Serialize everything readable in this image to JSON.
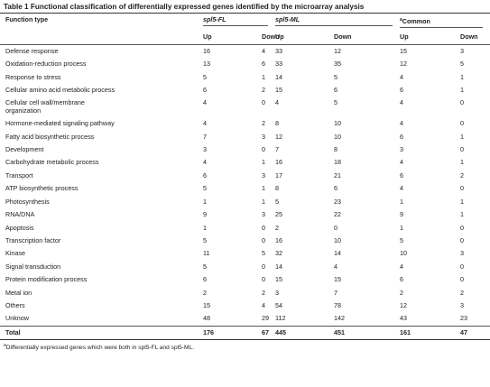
{
  "title": "Table 1 Functional classification of differentially expressed genes identified by the microarray analysis",
  "table": {
    "first_header": "Function type",
    "groups": [
      {
        "name": "spl5-FL"
      },
      {
        "name": "spl5-ML"
      },
      {
        "name": "Common",
        "note": "a"
      }
    ],
    "subheaders": [
      "Up",
      "Down",
      "Up",
      "Down",
      "Up",
      "Down"
    ],
    "rows": [
      [
        "Defense response",
        16,
        4,
        33,
        12,
        15,
        3
      ],
      [
        "Oxidation-reduction process",
        13,
        6,
        33,
        35,
        12,
        5
      ],
      [
        "Response to stress",
        5,
        1,
        14,
        5,
        4,
        1
      ],
      [
        "Cellular amino acid metabolic process",
        6,
        2,
        15,
        6,
        6,
        1
      ],
      [
        "Cellular cell wall/membrane organization",
        4,
        0,
        4,
        5,
        4,
        0
      ],
      [
        "Hormone-mediated signaling pathway",
        4,
        2,
        8,
        10,
        4,
        0
      ],
      [
        "Fatty acid biosynthetic process",
        7,
        3,
        12,
        10,
        6,
        1
      ],
      [
        "Development",
        3,
        0,
        7,
        8,
        3,
        0
      ],
      [
        "Carbohydrate metabolic process",
        4,
        1,
        16,
        18,
        4,
        1
      ],
      [
        "Transport",
        6,
        3,
        17,
        21,
        6,
        2
      ],
      [
        "ATP biosynthetic process",
        5,
        1,
        8,
        6,
        4,
        0
      ],
      [
        "Photosynthesis",
        1,
        1,
        5,
        23,
        1,
        1
      ],
      [
        "RNA/DNA",
        9,
        3,
        25,
        22,
        9,
        1
      ],
      [
        "Apoptosis",
        1,
        0,
        2,
        0,
        1,
        0
      ],
      [
        "Transcription factor",
        5,
        0,
        16,
        10,
        5,
        0
      ],
      [
        "Kinase",
        11,
        5,
        32,
        14,
        10,
        3
      ],
      [
        "Signal transduction",
        5,
        0,
        14,
        4,
        4,
        0
      ],
      [
        "Protein modification process",
        6,
        0,
        15,
        15,
        6,
        0
      ],
      [
        "Metal ion",
        2,
        2,
        3,
        7,
        2,
        2
      ],
      [
        "Others",
        15,
        4,
        54,
        78,
        12,
        3
      ],
      [
        "Unknow",
        48,
        29,
        112,
        142,
        43,
        23
      ]
    ],
    "total": [
      "Total",
      176,
      67,
      445,
      451,
      161,
      47
    ]
  },
  "footnote": {
    "marker": "a",
    "text": "Differentially expressed genes which were both in spl5-FL and spl5-ML."
  }
}
